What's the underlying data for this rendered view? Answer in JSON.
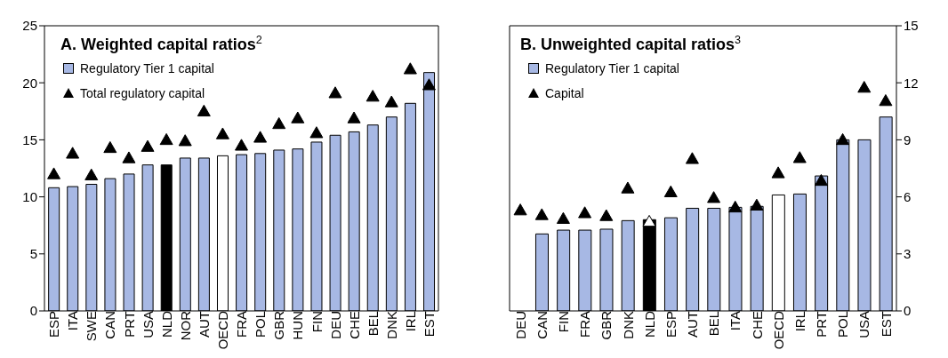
{
  "chart_data": [
    {
      "type": "bar",
      "title": "A. Weighted capital ratios$^{2}$",
      "categories": [
        "ESP",
        "ITA",
        "SWE",
        "CAN",
        "PRT",
        "USA",
        "NLD",
        "NOR",
        "AUT",
        "OECD",
        "FRA",
        "POL",
        "GBR",
        "HUN",
        "FIN",
        "DEU",
        "CHE",
        "BEL",
        "DNK",
        "IRL",
        "EST"
      ],
      "series": [
        {
          "name": "Regulatory Tier 1 capital",
          "color": "#a7b8e4",
          "colors": [
            "#a7b8e4",
            "#a7b8e4",
            "#a7b8e4",
            "#a7b8e4",
            "#a7b8e4",
            "#a7b8e4",
            "#000000",
            "#a7b8e4",
            "#a7b8e4",
            "#ffffff",
            "#a7b8e4",
            "#a7b8e4",
            "#a7b8e4",
            "#a7b8e4",
            "#a7b8e4",
            "#a7b8e4",
            "#a7b8e4",
            "#a7b8e4",
            "#a7b8e4",
            "#a7b8e4",
            "#a7b8e4"
          ],
          "values": [
            10.8,
            10.9,
            11.1,
            11.6,
            12.0,
            12.8,
            12.8,
            13.4,
            13.4,
            13.6,
            13.7,
            13.8,
            14.1,
            14.2,
            14.8,
            15.4,
            15.7,
            16.3,
            17.0,
            18.2,
            20.9
          ]
        },
        {
          "name": "Total regulatory capital",
          "type": "scatter",
          "color": "#000000",
          "values": [
            12.0,
            13.8,
            11.9,
            14.3,
            13.4,
            14.4,
            15.0,
            14.9,
            17.5,
            15.5,
            14.5,
            15.2,
            16.4,
            16.9,
            15.6,
            19.1,
            16.9,
            18.8,
            18.3,
            21.2,
            19.8
          ]
        }
      ],
      "ylim": [
        0,
        25
      ],
      "yticks": [
        0,
        5,
        10,
        15,
        20,
        25
      ],
      "grid": false,
      "legend": "top left",
      "marker": "triangle"
    },
    {
      "type": "bar",
      "title": "B. Unweighted capital ratios$^{3}$",
      "categories": [
        "DEU",
        "CAN",
        "FIN",
        "FRA",
        "GBR",
        "DNK",
        "NLD",
        "ESP",
        "AUT",
        "BEL",
        "ITA",
        "CHE",
        "OECD",
        "IRL",
        "PRT",
        "POL",
        "USA",
        "EST"
      ],
      "series": [
        {
          "name": "Regulatory Tier 1 capital",
          "axis": "y2",
          "color": "#a7b8e4",
          "colors": [
            "#a7b8e4",
            "#a7b8e4",
            "#a7b8e4",
            "#a7b8e4",
            "#a7b8e4",
            "#a7b8e4",
            "#000000",
            "#a7b8e4",
            "#a7b8e4",
            "#a7b8e4",
            "#a7b8e4",
            "#a7b8e4",
            "#ffffff",
            "#a7b8e4",
            "#a7b8e4",
            "#a7b8e4",
            "#a7b8e4",
            "#a7b8e4"
          ],
          "values": [
            null,
            4.05,
            4.25,
            4.25,
            4.3,
            4.75,
            4.8,
            4.9,
            5.4,
            5.4,
            5.45,
            5.5,
            6.1,
            6.15,
            7.1,
            9.0,
            9.0,
            10.2
          ]
        },
        {
          "name": "Capital",
          "type": "scatter",
          "axis": "y2",
          "color": "#000000",
          "colors": [
            "#000000",
            "#000000",
            "#000000",
            "#000000",
            "#000000",
            "#000000",
            "#ffffff",
            "#000000",
            "#000000",
            "#000000",
            "#000000",
            "#000000",
            "#000000",
            "#000000",
            "#000000",
            "#000000",
            "#000000",
            "#000000"
          ],
          "values": [
            5.3,
            5.05,
            4.85,
            5.15,
            5.0,
            6.45,
            4.7,
            6.25,
            8.0,
            5.95,
            5.45,
            5.55,
            7.25,
            8.05,
            6.85,
            9.0,
            11.75,
            11.05
          ]
        }
      ],
      "y2lim": [
        0,
        15
      ],
      "y2ticks": [
        0,
        3,
        6,
        9,
        12,
        15
      ],
      "grid": false,
      "legend": "top left",
      "marker": "triangle"
    }
  ]
}
